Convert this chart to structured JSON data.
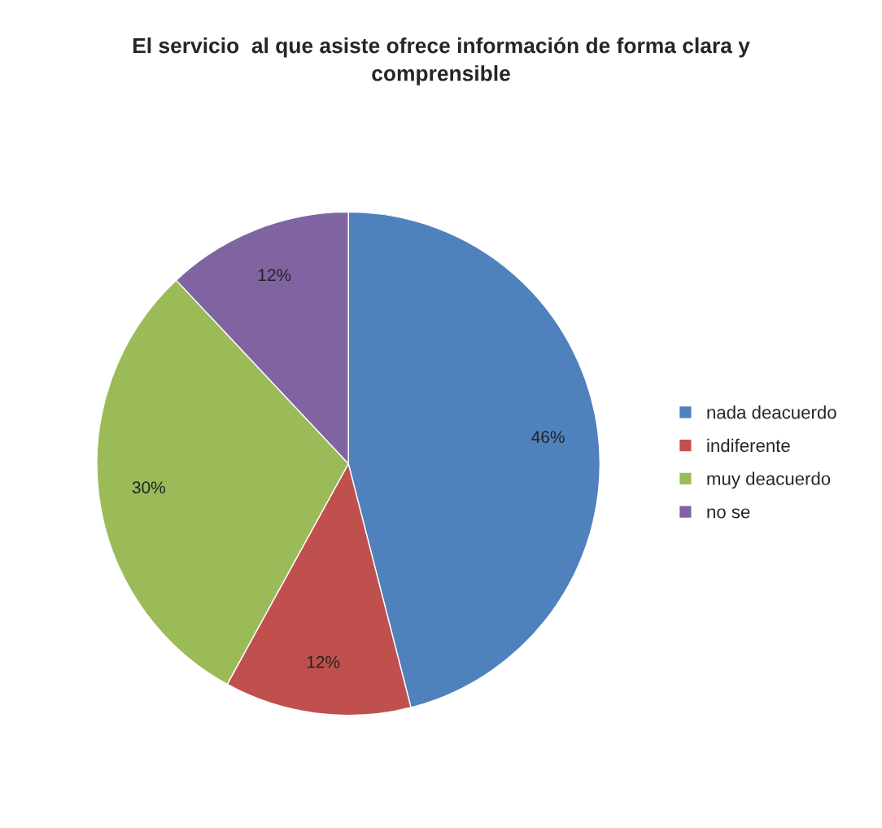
{
  "chart_data": {
    "type": "pie",
    "title": "El servicio  al que asiste ofrece información de forma clara y comprensible",
    "categories": [
      "nada deacuerdo",
      "indiferente",
      "muy deacuerdo",
      "no se"
    ],
    "values": [
      46,
      12,
      30,
      12
    ],
    "value_labels": [
      "46%",
      "12%",
      "30%",
      "12%"
    ],
    "colors": [
      "#4f81bd",
      "#c0504d",
      "#9bbb59",
      "#8064a2"
    ],
    "legend": "right"
  }
}
